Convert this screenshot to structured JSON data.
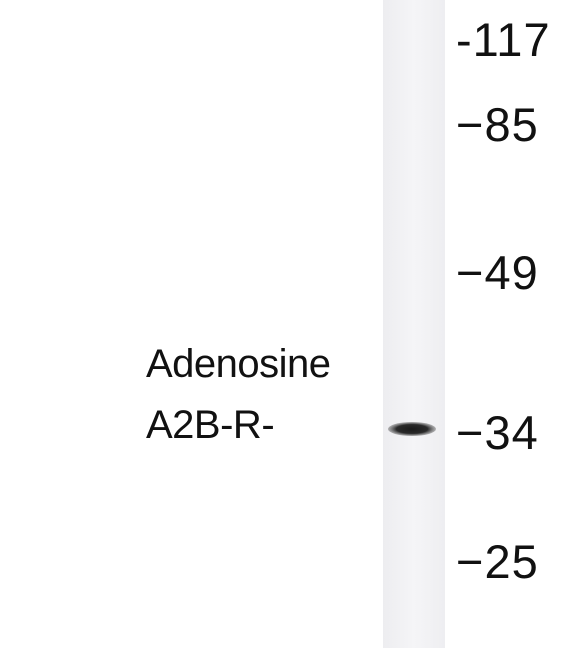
{
  "target_label": {
    "line1": "Adenosine",
    "line2": "A2B-R-"
  },
  "markers": [
    {
      "text": "-117",
      "value": 117
    },
    {
      "text": "−85",
      "value": 85
    },
    {
      "text": "−49",
      "value": 49
    },
    {
      "text": "−34",
      "value": 34
    },
    {
      "text": "−25",
      "value": 25
    }
  ],
  "band": {
    "lane": 1,
    "size": 34
  },
  "colors": {
    "lane": "#f2f2f4",
    "band": "#222222",
    "text": "#111111"
  }
}
